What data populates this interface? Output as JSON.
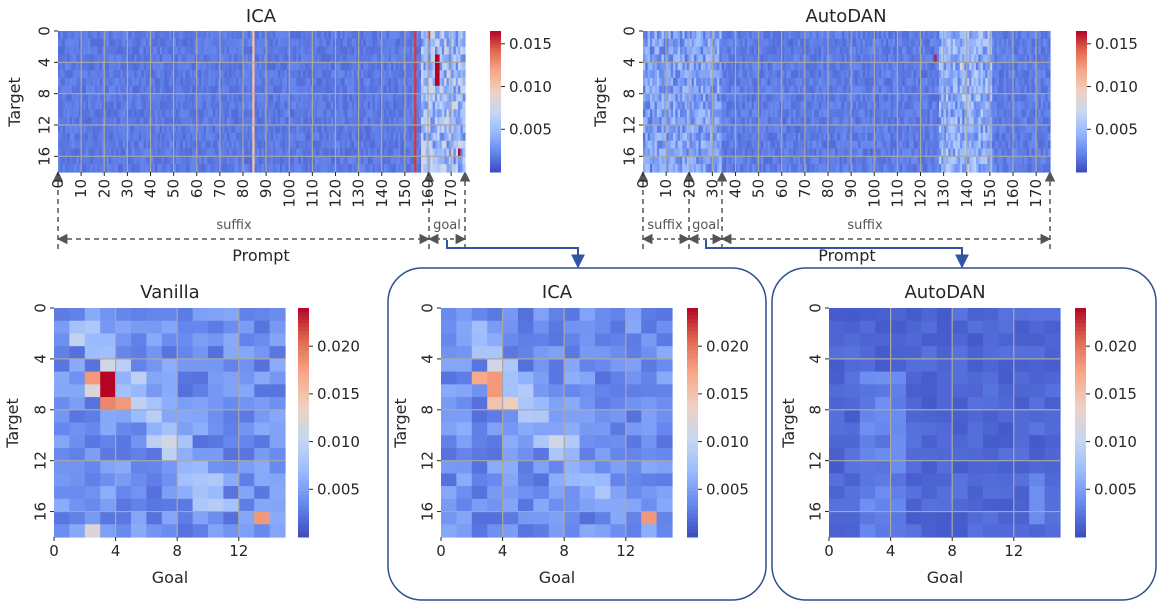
{
  "colormap": {
    "name": "coolwarm",
    "stops": [
      "#3b4cc0",
      "#6788ee",
      "#9abbff",
      "#c9d7f0",
      "#edd1c2",
      "#f7a889",
      "#e26952",
      "#b40426"
    ]
  },
  "chart_data": [
    {
      "id": "ica-full",
      "type": "heatmap",
      "title": "ICA",
      "ylabel": "Target",
      "x_ticks": [
        "0",
        "10",
        "20",
        "30",
        "40",
        "50",
        "60",
        "70",
        "80",
        "90",
        "100",
        "110",
        "120",
        "130",
        "140",
        "150",
        "160",
        "170"
      ],
      "y_ticks": [
        "0",
        "4",
        "8",
        "12",
        "16"
      ],
      "n_cols": 176,
      "n_rows": 18,
      "colorbar_ticks": [
        "0.005",
        "0.010",
        "0.015"
      ],
      "vrange": [
        0.0,
        0.0165
      ],
      "segments": [
        {
          "label": "suffix",
          "from": 0,
          "to": 157
        },
        {
          "label": "goal",
          "from": 157,
          "to": 176
        }
      ],
      "span_label": "Prompt"
    },
    {
      "id": "autodan-full",
      "type": "heatmap",
      "title": "AutoDAN",
      "ylabel": "Target",
      "x_ticks": [
        "0",
        "10",
        "20",
        "30",
        "40",
        "50",
        "60",
        "70",
        "80",
        "90",
        "100",
        "110",
        "120",
        "130",
        "140",
        "150",
        "160",
        "170"
      ],
      "y_ticks": [
        "0",
        "4",
        "8",
        "12",
        "16"
      ],
      "n_cols": 176,
      "n_rows": 18,
      "colorbar_ticks": [
        "0.005",
        "0.010",
        "0.015"
      ],
      "vrange": [
        0.0,
        0.0165
      ],
      "segments": [
        {
          "label": "suffix",
          "from": 0,
          "to": 20
        },
        {
          "label": "goal",
          "from": 20,
          "to": 34
        },
        {
          "label": "suffix",
          "from": 34,
          "to": 176
        }
      ],
      "span_label": "Prompt"
    },
    {
      "id": "vanilla",
      "type": "heatmap",
      "title": "Vanilla",
      "xlabel": "Goal",
      "ylabel": "Target",
      "x_ticks": [
        "0",
        "4",
        "8",
        "12"
      ],
      "y_ticks": [
        "0",
        "4",
        "8",
        "12",
        "16"
      ],
      "n_cols": 15,
      "n_rows": 18,
      "colorbar_ticks": [
        "0.005",
        "0.010",
        "0.015",
        "0.020"
      ],
      "vrange": [
        0.0,
        0.024
      ]
    },
    {
      "id": "ica-zoom",
      "type": "heatmap",
      "title": "ICA",
      "xlabel": "Goal",
      "ylabel": "Target",
      "x_ticks": [
        "0",
        "4",
        "8",
        "12"
      ],
      "y_ticks": [
        "0",
        "4",
        "8",
        "12",
        "16"
      ],
      "n_cols": 15,
      "n_rows": 18,
      "colorbar_ticks": [
        "0.005",
        "0.010",
        "0.015",
        "0.020"
      ],
      "vrange": [
        0.0,
        0.024
      ]
    },
    {
      "id": "autodan-zoom",
      "type": "heatmap",
      "title": "AutoDAN",
      "xlabel": "Goal",
      "ylabel": "Target",
      "x_ticks": [
        "0",
        "4",
        "8",
        "12"
      ],
      "y_ticks": [
        "0",
        "4",
        "8",
        "12",
        "16"
      ],
      "n_cols": 15,
      "n_rows": 18,
      "colorbar_ticks": [
        "0.005",
        "0.010",
        "0.015",
        "0.020"
      ],
      "vrange": [
        0.0,
        0.024
      ]
    }
  ]
}
